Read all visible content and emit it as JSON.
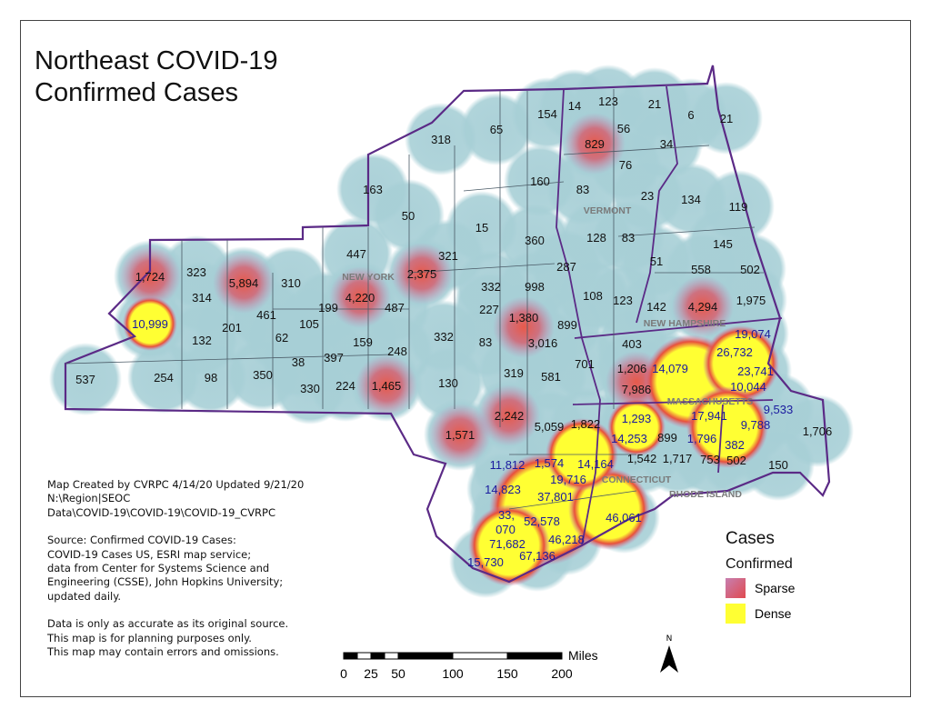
{
  "title": [
    "Northeast COVID-19",
    "Confirmed Cases"
  ],
  "notes": {
    "credit": [
      "Map Created by CVRPC 4/14/20 Updated 9/21/20",
      "N:\\Region|SEOC",
      "Data\\COVID-19\\COVID-19\\COVID-19_CVRPC"
    ],
    "source": [
      "Source: Confirmed COVID-19 Cases:",
      "COVID-19 Cases US, ESRI map service;",
      "data from Center for Systems Science and",
      "Engineering (CSSE), John Hopkins University;",
      "updated daily."
    ],
    "disclaimer": [
      "Data is only as accurate as its original source.",
      "This map is for planning purposes only.",
      "This map may contain errors and omissions."
    ]
  },
  "legend": {
    "title": "Cases",
    "subtitle": "Confirmed",
    "items": [
      {
        "label": "Sparse",
        "color": "#c77fb0"
      },
      {
        "label": "Dense",
        "color": "#ffff33"
      }
    ]
  },
  "scale": {
    "ticks": [
      "0",
      "25",
      "50",
      "100",
      "150",
      "200"
    ],
    "unit": "Miles"
  },
  "north": "N",
  "colors": {
    "border": "#5b2a86",
    "sparse_fill": "#a7cfd6",
    "dense_label": "#1a1a9e",
    "state_label": "#7a7a7a"
  },
  "states": [
    "NEW YORK",
    "VERMONT",
    "NEW HAMPSHIRE",
    "MASSACHUSETTS",
    "CONNECTICUT",
    "RHODE ISLAND"
  ],
  "counties": [
    {
      "v": "1,724"
    },
    {
      "v": "323"
    },
    {
      "v": "5,894"
    },
    {
      "v": "310"
    },
    {
      "v": "314"
    },
    {
      "v": "10,999",
      "d": 1
    },
    {
      "v": "201"
    },
    {
      "v": "461"
    },
    {
      "v": "132"
    },
    {
      "v": "62"
    },
    {
      "v": "105"
    },
    {
      "v": "199"
    },
    {
      "v": "4,220"
    },
    {
      "v": "487"
    },
    {
      "v": "2,375"
    },
    {
      "v": "447"
    },
    {
      "v": "163"
    },
    {
      "v": "50"
    },
    {
      "v": "318"
    },
    {
      "v": "65"
    },
    {
      "v": "154"
    },
    {
      "v": "14"
    },
    {
      "v": "123"
    },
    {
      "v": "21"
    },
    {
      "v": "6"
    },
    {
      "v": "21"
    },
    {
      "v": "56"
    },
    {
      "v": "34"
    },
    {
      "v": "829"
    },
    {
      "v": "76"
    },
    {
      "v": "160"
    },
    {
      "v": "83"
    },
    {
      "v": "23"
    },
    {
      "v": "134"
    },
    {
      "v": "119"
    },
    {
      "v": "15"
    },
    {
      "v": "321"
    },
    {
      "v": "360"
    },
    {
      "v": "128"
    },
    {
      "v": "83"
    },
    {
      "v": "145"
    },
    {
      "v": "51"
    },
    {
      "v": "558"
    },
    {
      "v": "502"
    },
    {
      "v": "287"
    },
    {
      "v": "332"
    },
    {
      "v": "998"
    },
    {
      "v": "227"
    },
    {
      "v": "108"
    },
    {
      "v": "123"
    },
    {
      "v": "142"
    },
    {
      "v": "4,294"
    },
    {
      "v": "1,975"
    },
    {
      "v": "1,380"
    },
    {
      "v": "899"
    },
    {
      "v": "83"
    },
    {
      "v": "3,016"
    },
    {
      "v": "332"
    },
    {
      "v": "159"
    },
    {
      "v": "248"
    },
    {
      "v": "38"
    },
    {
      "v": "397"
    },
    {
      "v": "537"
    },
    {
      "v": "254"
    },
    {
      "v": "98"
    },
    {
      "v": "350"
    },
    {
      "v": "330"
    },
    {
      "v": "224"
    },
    {
      "v": "1,465"
    },
    {
      "v": "130"
    },
    {
      "v": "319"
    },
    {
      "v": "581"
    },
    {
      "v": "701"
    },
    {
      "v": "403"
    },
    {
      "v": "1,206"
    },
    {
      "v": "14,079",
      "d": 1
    },
    {
      "v": "26,732",
      "d": 1
    },
    {
      "v": "19,074",
      "d": 1
    },
    {
      "v": "23,741",
      "d": 1
    },
    {
      "v": "10,044",
      "d": 1
    },
    {
      "v": "7,986"
    },
    {
      "v": "1,571"
    },
    {
      "v": "2,242"
    },
    {
      "v": "5,059"
    },
    {
      "v": "1,822"
    },
    {
      "v": "1,293",
      "d": 1
    },
    {
      "v": "9,533",
      "d": 1
    },
    {
      "v": "17,941",
      "d": 1
    },
    {
      "v": "9,788",
      "d": 1
    },
    {
      "v": "1,706"
    },
    {
      "v": "14,253",
      "d": 1
    },
    {
      "v": "899"
    },
    {
      "v": "1,796",
      "d": 1
    },
    {
      "v": "382",
      "d": 1
    },
    {
      "v": "11,812",
      "d": 1
    },
    {
      "v": "1,574",
      "d": 1
    },
    {
      "v": "14,164",
      "d": 1
    },
    {
      "v": "1,542"
    },
    {
      "v": "1,717"
    },
    {
      "v": "753"
    },
    {
      "v": "502"
    },
    {
      "v": "150"
    },
    {
      "v": "19,716",
      "d": 1
    },
    {
      "v": "14,823",
      "d": 1
    },
    {
      "v": "37,801",
      "d": 1
    },
    {
      "v": "33,",
      "d": 1
    },
    {
      "v": "070",
      "d": 1
    },
    {
      "v": "52,578",
      "d": 1
    },
    {
      "v": "46,061",
      "d": 1
    },
    {
      "v": "71,682",
      "d": 1
    },
    {
      "v": "46,218",
      "d": 1
    },
    {
      "v": "15,730",
      "d": 1
    },
    {
      "v": "67,136",
      "d": 1
    }
  ]
}
